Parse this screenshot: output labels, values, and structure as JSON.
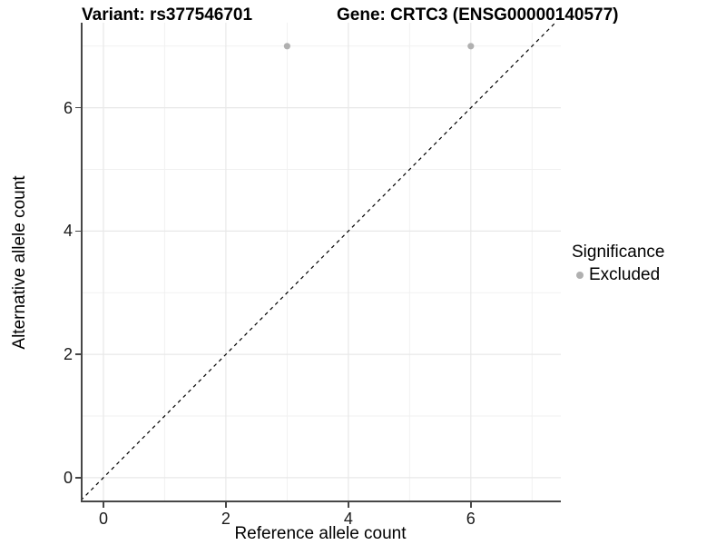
{
  "chart_data": {
    "type": "scatter",
    "title_left": "Variant: rs377546701",
    "title_right": "Gene: CRTC3 (ENSG00000140577)",
    "xlabel": "Reference allele count",
    "ylabel": "Alternative allele count",
    "xlim": [
      -0.37,
      7.47
    ],
    "ylim": [
      -0.4,
      7.38
    ],
    "x_ticks": [
      0,
      2,
      4,
      6
    ],
    "y_ticks": [
      0,
      2,
      4,
      6
    ],
    "x_minor_gridlines": [
      1,
      3,
      5,
      7
    ],
    "y_minor_gridlines": [
      1,
      3,
      5,
      7
    ],
    "grid": true,
    "series": [
      {
        "name": "Excluded",
        "color": "#b0b0b0",
        "points": [
          {
            "x": 3,
            "y": 7
          },
          {
            "x": 6,
            "y": 7
          }
        ]
      }
    ],
    "reference_line": {
      "slope": 1,
      "intercept": 0,
      "style": "dashed",
      "color": "#000000"
    },
    "legend": {
      "title": "Significance",
      "position": "right",
      "items": [
        {
          "label": "Excluded",
          "color": "#b0b0b0"
        }
      ]
    }
  },
  "colors": {
    "background": "#ffffff",
    "grid_major": "#e8e8e8",
    "grid_minor": "#f1f1f1",
    "axis_line": "#474747",
    "tick_text": "#1a1a1a",
    "point": "#b0b0b0"
  }
}
